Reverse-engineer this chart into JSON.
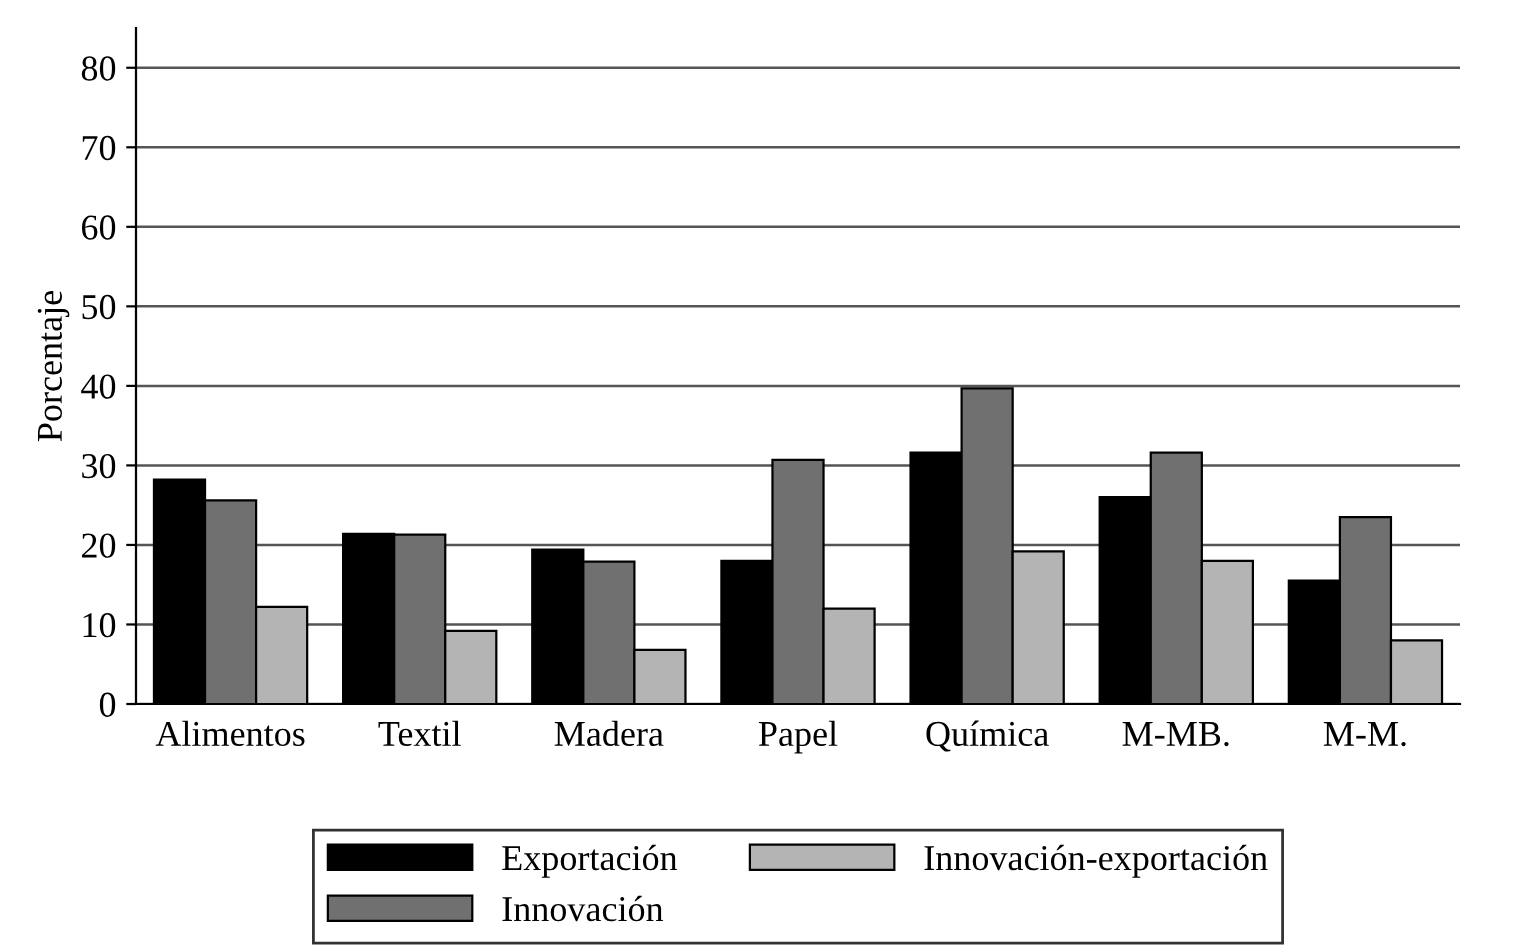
{
  "chart_data": {
    "type": "bar",
    "ylabel": "Porcentaje",
    "categories": [
      "Alimentos",
      "Textil",
      "Madera",
      "Papel",
      "Química",
      "M-MB.",
      "M-M."
    ],
    "series": [
      {
        "name": "Exportación",
        "color": "#000000",
        "values": [
          28.2,
          21.4,
          19.4,
          18,
          31.6,
          26,
          15.5
        ]
      },
      {
        "name": "Innovación",
        "color": "#707070",
        "values": [
          25.6,
          21.3,
          17.9,
          30.7,
          39.7,
          31.6,
          23.5
        ]
      },
      {
        "name": "Innovación-exportación",
        "color": "#b4b4b4",
        "values": [
          12.2,
          9.2,
          6.8,
          12,
          19.2,
          18,
          8
        ]
      }
    ],
    "ylim": [
      0,
      85
    ],
    "yticks": [
      0,
      10,
      20,
      30,
      40,
      50,
      60,
      70,
      80
    ],
    "grid": "y",
    "legend": "bottom"
  }
}
